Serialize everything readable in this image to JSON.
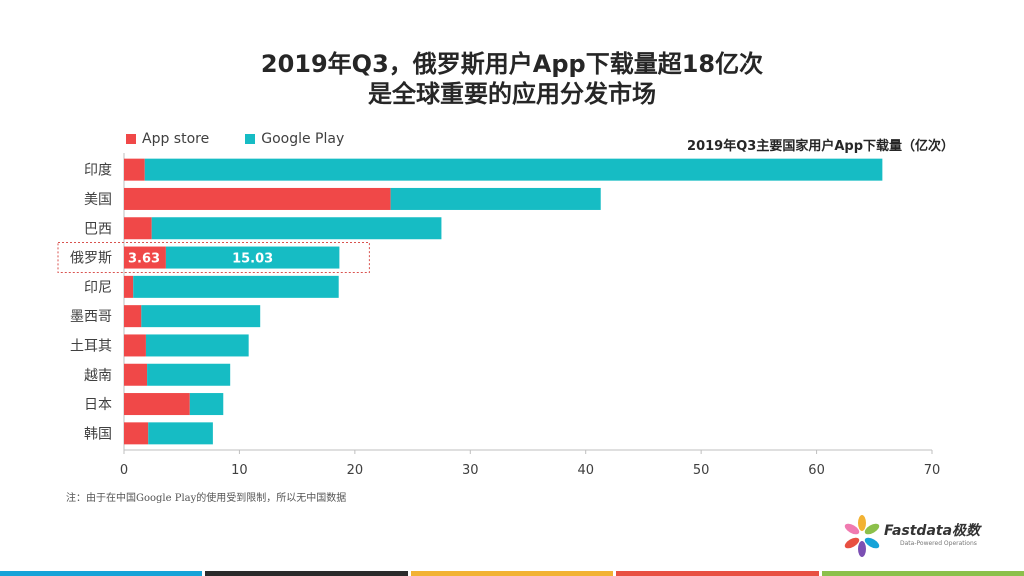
{
  "title_line1": "2019年Q3，俄罗斯用户App下载量超18亿次",
  "title_line2": "是全球重要的应用分发市场",
  "unit_label": "2019年Q3主要国家用户App下载量（亿次）",
  "note": "注：由于在中国Google Play的使用受到限制，所以无中国数据",
  "logo": {
    "brand": "Fastdata极数",
    "tagline": "Data-Powered Operations"
  },
  "colors": {
    "app_store": "#f04848",
    "google_play": "#16bcc4",
    "highlight_border": "#d9534f"
  },
  "bottom_strip_colors": [
    "#16a3d8",
    "#2b2b2b",
    "#f2b233",
    "#e85042",
    "#8cc04b"
  ],
  "chart_data": {
    "type": "bar",
    "orientation": "horizontal",
    "stacked": true,
    "categories": [
      "印度",
      "美国",
      "巴西",
      "俄罗斯",
      "印尼",
      "墨西哥",
      "土耳其",
      "越南",
      "日本",
      "韩国"
    ],
    "series": [
      {
        "name": "App store",
        "values": [
          1.8,
          23.1,
          2.4,
          3.63,
          0.8,
          1.5,
          1.9,
          2.0,
          5.7,
          2.1
        ]
      },
      {
        "name": "Google Play",
        "values": [
          63.9,
          18.2,
          25.1,
          15.03,
          17.8,
          10.3,
          8.9,
          7.2,
          2.9,
          5.6
        ]
      }
    ],
    "data_labels": {
      "俄罗斯": [
        "3.63",
        "15.03"
      ]
    },
    "highlight": "俄罗斯",
    "xlim": [
      0,
      70
    ],
    "xticks": [
      0,
      10,
      20,
      30,
      40,
      50,
      60,
      70
    ],
    "legend_position": "top-left",
    "grid": false
  }
}
